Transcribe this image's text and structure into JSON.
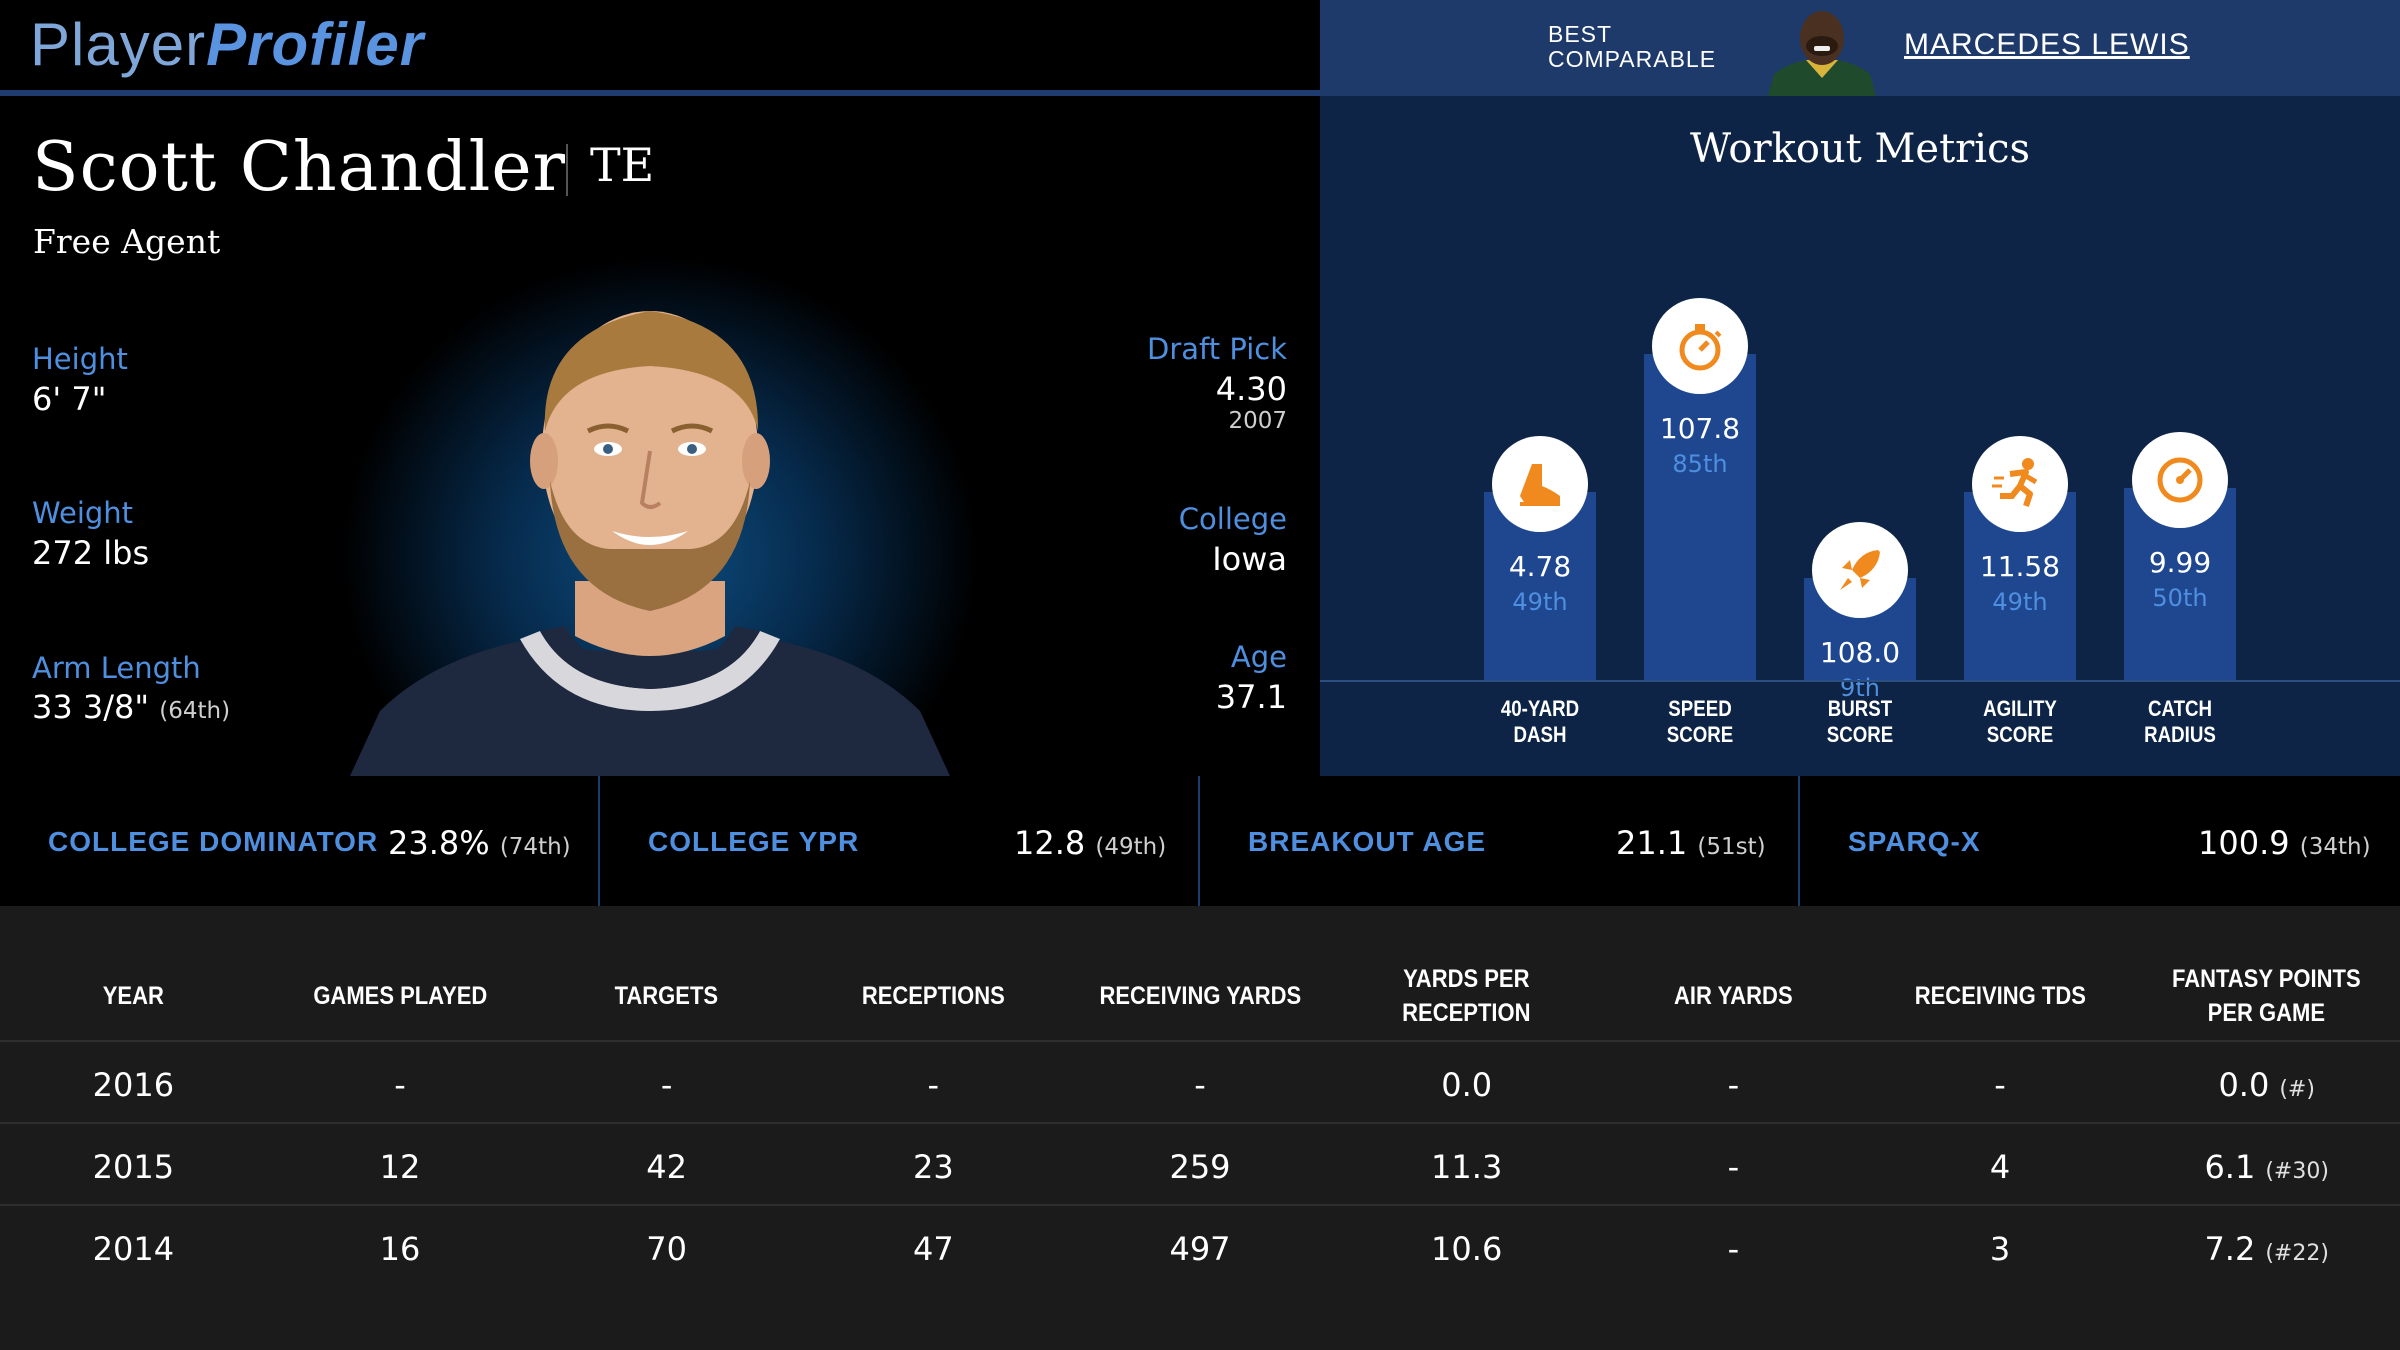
{
  "header": {
    "logo_part1": "Player",
    "logo_part2": "Profiler",
    "best_label_line1": "BEST",
    "best_label_line2": "COMPARABLE",
    "comparable_name": "MARCEDES LEWIS"
  },
  "player": {
    "name": "Scott Chandler",
    "position": "TE",
    "team": "Free Agent",
    "height_label": "Height",
    "height": "6' 7\"",
    "weight_label": "Weight",
    "weight": "272 lbs",
    "arm_label": "Arm Length",
    "arm": "33 3/8\"",
    "arm_pct": "(64th)",
    "draft_label": "Draft Pick",
    "draft_pick": "4.30",
    "draft_year": "2007",
    "college_label": "College",
    "college": "Iowa",
    "age_label": "Age",
    "age": "37.1"
  },
  "workout": {
    "title": "Workout Metrics",
    "bars": [
      {
        "value": "4.78",
        "pct": "49th",
        "pct_num": 49,
        "label1": "40-YARD",
        "label2": "DASH",
        "icon": "shoe-icon"
      },
      {
        "value": "107.8",
        "pct": "85th",
        "pct_num": 85,
        "label1": "SPEED",
        "label2": "SCORE",
        "icon": "stopwatch-icon"
      },
      {
        "value": "108.0",
        "pct": "9th",
        "pct_num": 9,
        "label1": "BURST",
        "label2": "SCORE",
        "icon": "rocket-icon"
      },
      {
        "value": "11.58",
        "pct": "49th",
        "pct_num": 49,
        "label1": "AGILITY",
        "label2": "SCORE",
        "icon": "runner-icon"
      },
      {
        "value": "9.99",
        "pct": "50th",
        "pct_num": 50,
        "label1": "CATCH",
        "label2": "RADIUS",
        "icon": "target-icon"
      }
    ]
  },
  "metrics": [
    {
      "label": "COLLEGE DOMINATOR",
      "value": "23.8%",
      "pct": "(74th)"
    },
    {
      "label": "COLLEGE YPR",
      "value": "12.8",
      "pct": "(49th)"
    },
    {
      "label": "BREAKOUT AGE",
      "value": "21.1",
      "pct": "(51st)"
    },
    {
      "label": "SPARQ-X",
      "value": "100.9",
      "pct": "(34th)"
    }
  ],
  "table": {
    "headers": [
      "YEAR",
      "GAMES PLAYED",
      "TARGETS",
      "RECEPTIONS",
      "RECEIVING YARDS",
      "YARDS PER RECEPTION",
      "AIR YARDS",
      "RECEIVING TDS",
      "FANTASY POINTS PER GAME"
    ],
    "rows": [
      {
        "cells": [
          "2016",
          "-",
          "-",
          "-",
          "-",
          "0.0",
          "-",
          "-",
          "0.0"
        ],
        "rank": "(#)"
      },
      {
        "cells": [
          "2015",
          "12",
          "42",
          "23",
          "259",
          "11.3",
          "-",
          "4",
          "6.1"
        ],
        "rank": "(#30)"
      },
      {
        "cells": [
          "2014",
          "16",
          "70",
          "47",
          "497",
          "10.6",
          "-",
          "3",
          "7.2"
        ],
        "rank": "(#22)"
      }
    ]
  }
}
